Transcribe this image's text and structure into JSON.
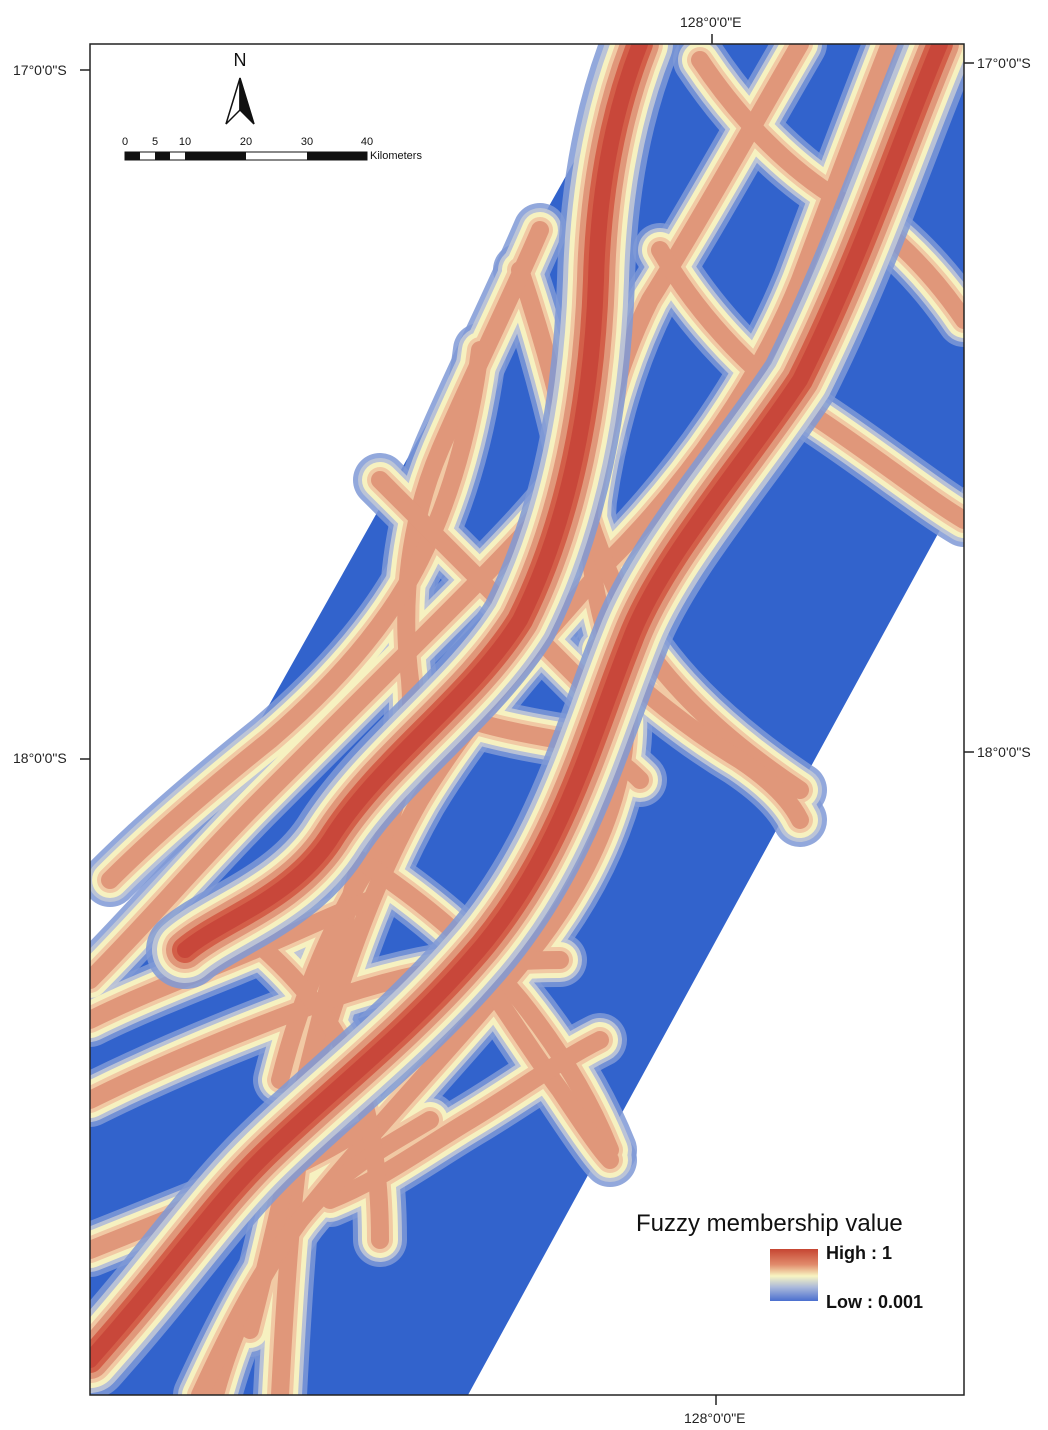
{
  "map": {
    "graticule": {
      "lon_label": "128°0'0\"E",
      "lat_top_label": "17°0'0\"S",
      "lat_mid_label": "18°0'0\"S"
    },
    "north_arrow": {
      "letter": "N"
    },
    "scale_bar": {
      "ticks": [
        "0",
        "5",
        "10",
        "20",
        "30",
        "40"
      ],
      "unit": "Kilometers"
    },
    "legend": {
      "title": "Fuzzy membership value",
      "high_label": "High : 1",
      "low_label": "Low : 0.001",
      "ramp_colors": [
        "#c64532",
        "#e18b6c",
        "#f8f5c2",
        "#a9b8db",
        "#4a6fcf"
      ]
    },
    "colors": {
      "background_low": "#3263cc",
      "halo_blue": "#7f99d6",
      "pale": "#f6f1c0",
      "mid": "#e0977a",
      "high": "#c8473a"
    }
  }
}
